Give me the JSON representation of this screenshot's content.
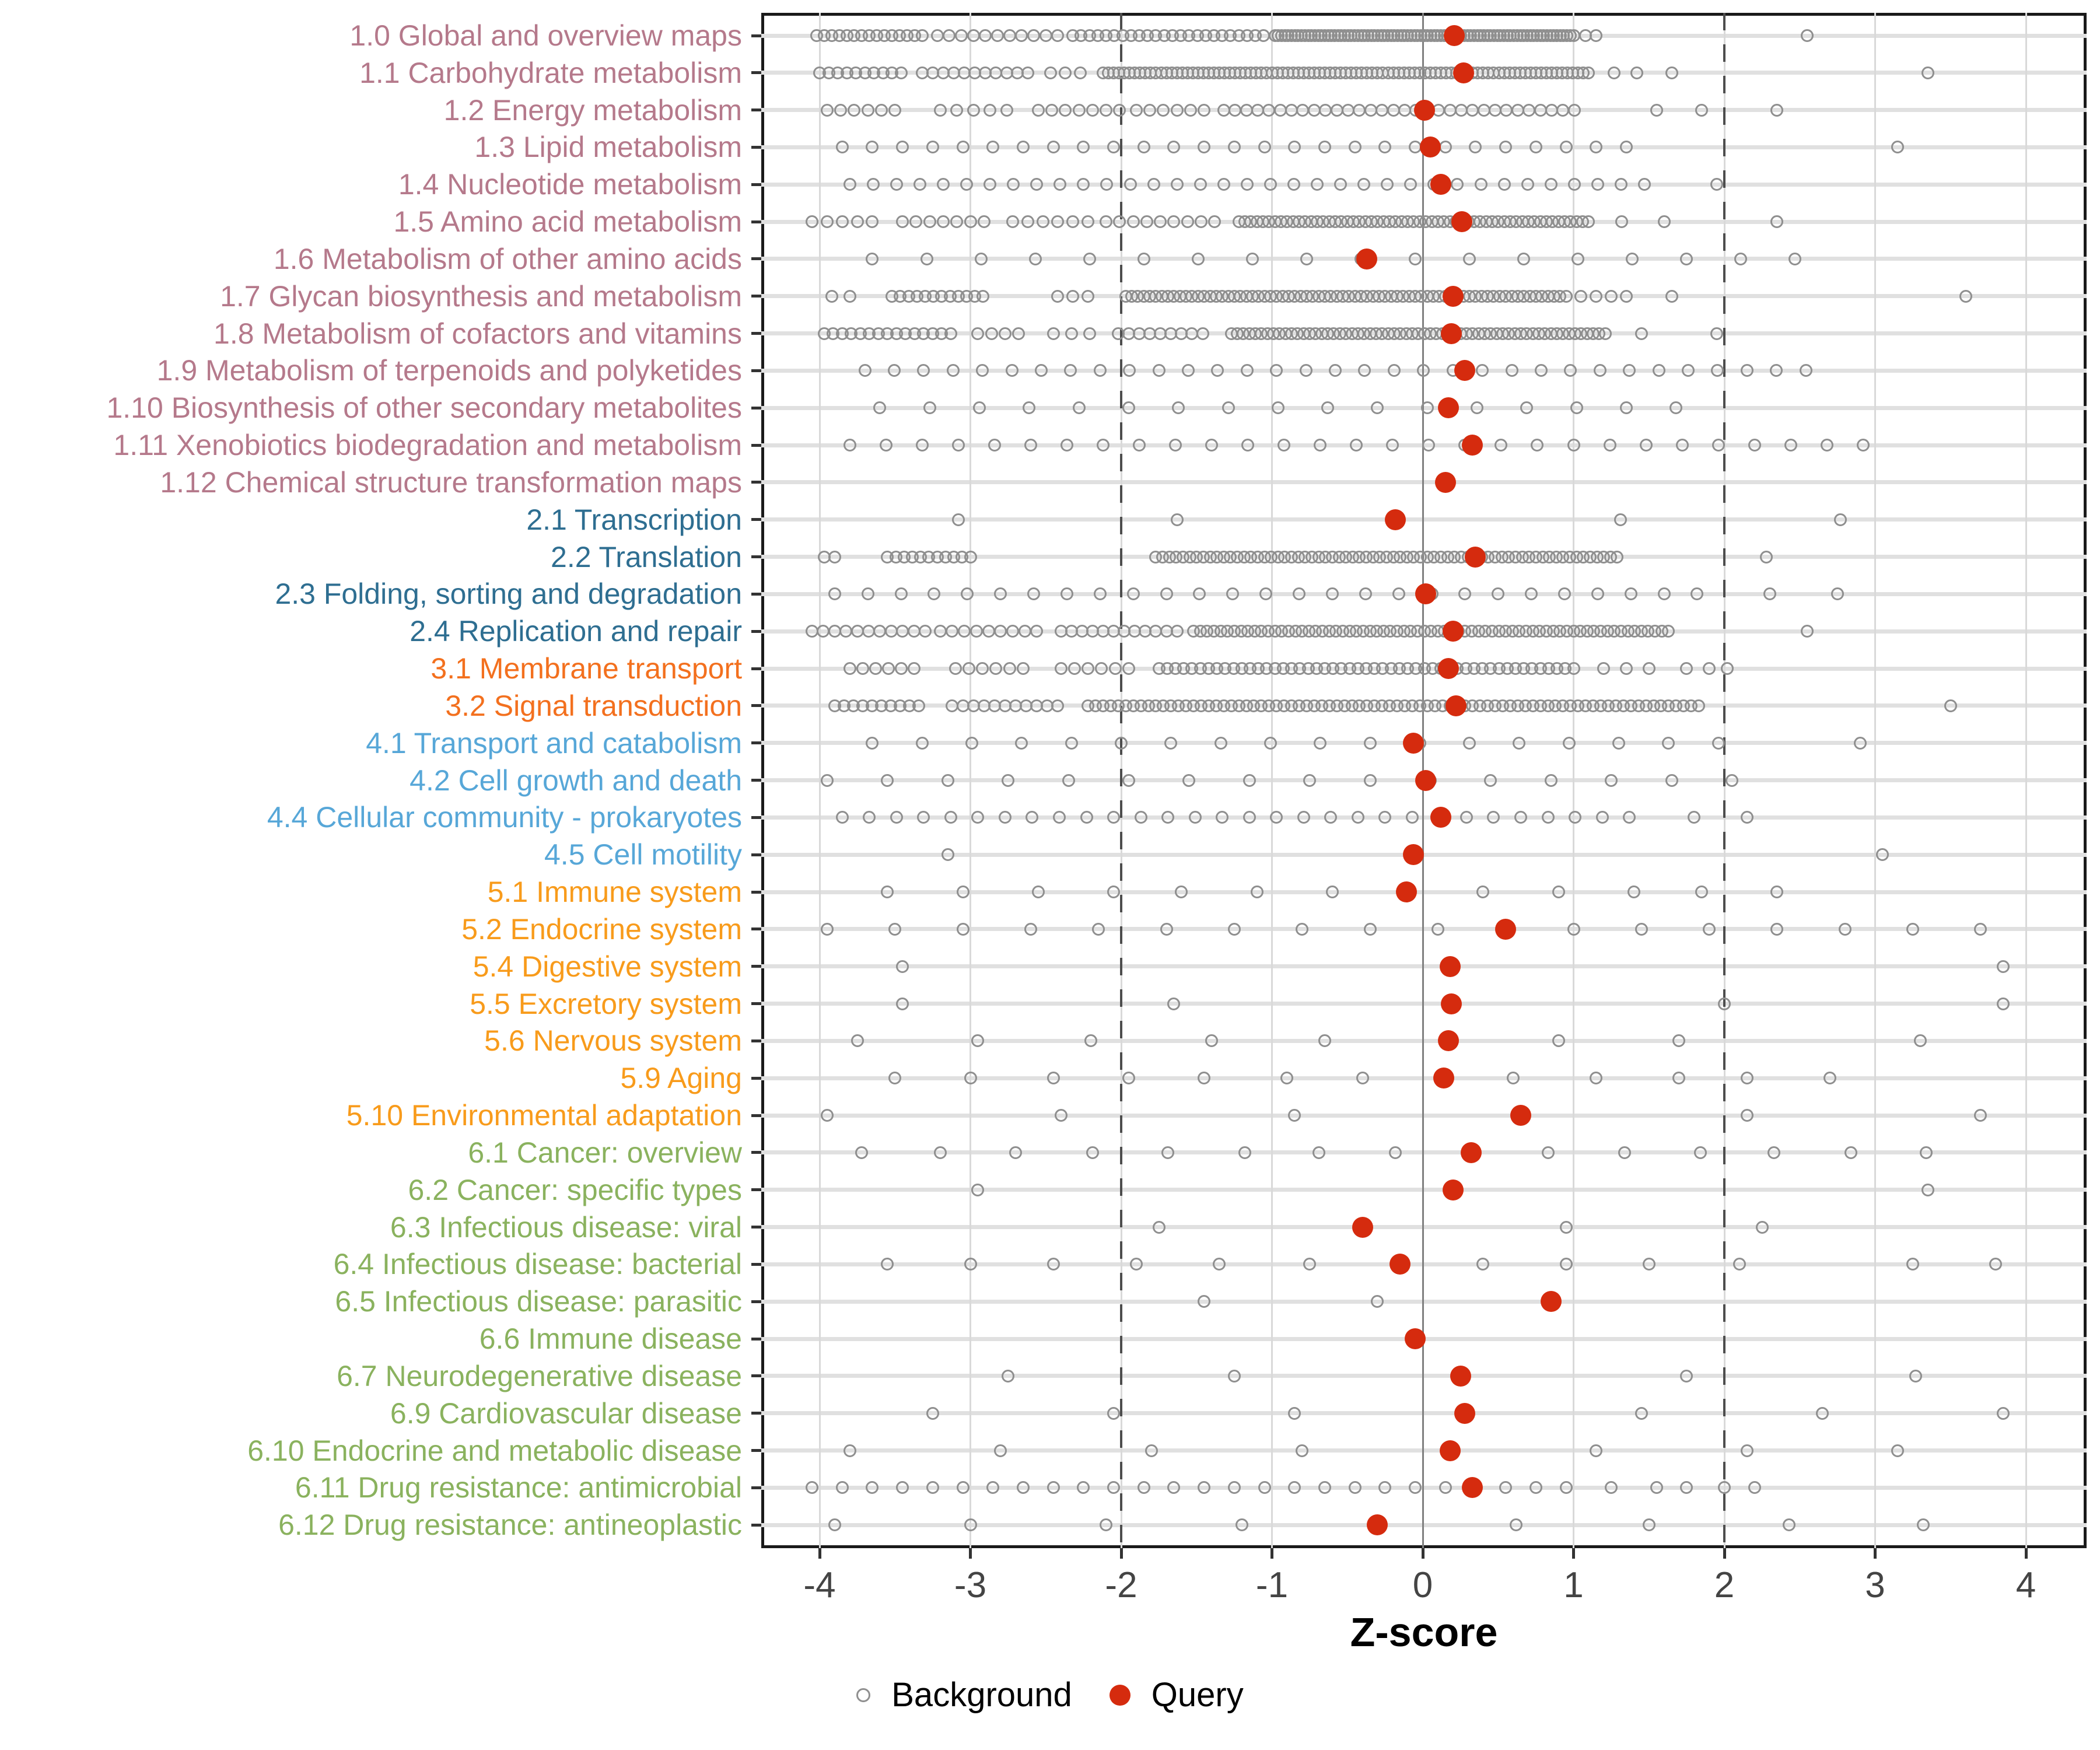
{
  "chart_data": {
    "type": "strip",
    "title": "",
    "xlabel": "Z-score",
    "x_ticks": [
      -4,
      -3,
      -2,
      -1,
      0,
      1,
      2,
      3,
      4
    ],
    "xlim": [
      -4.39,
      4.4
    ],
    "grid": "major-x and per-row horizontal lines",
    "reference_lines": {
      "solid_at": 0,
      "dashed_at": [
        -2,
        2
      ]
    },
    "legend_position": "bottom-center",
    "legend": [
      {
        "label": "Background",
        "marker": "open-circle",
        "color": "#8f8f8f"
      },
      {
        "label": "Query",
        "marker": "filled-circle",
        "color": "#d52b0e"
      }
    ],
    "colors": {
      "query_point": "#d52b0e",
      "background_point_stroke": "#8f8f8f",
      "row_gridline": "#e0e0e0",
      "vertical_gridline": "#d9d9d9",
      "zero_line": "#808080",
      "dashed_line": "#4d4d4d",
      "tick_label": "#444444",
      "panel_border": "#1a1a1a"
    },
    "group_colors": {
      "metabolism": "#b5798b",
      "genetic_information_processing": "#2e6e91",
      "environmental_information_processing": "#f3701e",
      "cellular_processes": "#57a7d8",
      "organismal_systems": "#f89b1b",
      "human_diseases": "#8ab25e"
    },
    "rows": [
      {
        "label": "1.0 Global and overview maps",
        "group": "metabolism",
        "query": 0.21,
        "bg_runs": [
          [
            -4.02,
            -3.32,
            0.05
          ],
          [
            -3.22,
            -2.42,
            0.08
          ],
          [
            -2.32,
            -1.02,
            0.055
          ],
          [
            -0.98,
            1.02,
            0.022
          ]
        ],
        "bg": [
          1.08,
          1.15,
          2.55
        ]
      },
      {
        "label": "1.1 Carbohydrate metabolism",
        "group": "metabolism",
        "query": 0.27,
        "bg_runs": [
          [
            -4.0,
            -3.42,
            0.06
          ],
          [
            -3.32,
            -2.62,
            0.07
          ],
          [
            -2.47,
            -2.27,
            0.1
          ],
          [
            -2.12,
            1.12,
            0.035
          ]
        ],
        "bg": [
          1.27,
          1.42,
          1.65,
          3.35
        ]
      },
      {
        "label": "1.2 Energy metabolism",
        "group": "metabolism",
        "query": 0.01,
        "bg_runs": [
          [
            -3.95,
            -3.5,
            0.09
          ],
          [
            -3.2,
            -2.75,
            0.11
          ],
          [
            -2.55,
            -1.98,
            0.09
          ],
          [
            -1.9,
            -1.42,
            0.09
          ],
          [
            -1.32,
            1.02,
            0.075
          ]
        ],
        "bg": [
          1.55,
          1.85,
          2.35
        ]
      },
      {
        "label": "1.3 Lipid metabolism",
        "group": "metabolism",
        "query": 0.05,
        "bg_runs": [
          [
            -3.85,
            1.35,
            0.2
          ]
        ],
        "bg": [
          3.15
        ]
      },
      {
        "label": "1.4 Nucleotide metabolism",
        "group": "metabolism",
        "query": 0.12,
        "bg_runs": [
          [
            -3.8,
            1.58,
            0.155
          ]
        ],
        "bg": [
          1.95
        ]
      },
      {
        "label": "1.5 Amino acid metabolism",
        "group": "metabolism",
        "query": 0.26,
        "bg_runs": [
          [
            -4.05,
            -3.58,
            0.1
          ],
          [
            -3.45,
            -2.9,
            0.09
          ],
          [
            -2.72,
            -2.22,
            0.1
          ],
          [
            -2.1,
            -1.32,
            0.09
          ],
          [
            -1.22,
            1.12,
            0.04
          ]
        ],
        "bg": [
          1.32,
          1.6,
          2.35
        ]
      },
      {
        "label": "1.6 Metabolism of other amino acids",
        "group": "metabolism",
        "query": -0.37,
        "bg_runs": [
          [
            -3.65,
            2.56,
            0.36
          ]
        ],
        "bg": []
      },
      {
        "label": "1.7 Glycan biosynthesis and metabolism",
        "group": "metabolism",
        "query": 0.2,
        "bg_runs": [
          [
            -3.92,
            -3.8,
            0.12
          ],
          [
            -3.52,
            -2.9,
            0.055
          ],
          [
            -2.42,
            -2.22,
            0.1
          ],
          [
            -1.97,
            0.97,
            0.04
          ],
          [
            1.05,
            1.35,
            0.1
          ]
        ],
        "bg": [
          1.65,
          3.6
        ]
      },
      {
        "label": "1.8 Metabolism of cofactors and vitamins",
        "group": "metabolism",
        "query": 0.19,
        "bg_runs": [
          [
            -3.97,
            -3.1,
            0.06
          ],
          [
            -2.95,
            -2.6,
            0.09
          ],
          [
            -2.45,
            -2.2,
            0.12
          ],
          [
            -2.02,
            -1.42,
            0.07
          ],
          [
            -1.27,
            1.22,
            0.04
          ]
        ],
        "bg": [
          1.45,
          1.95
        ]
      },
      {
        "label": "1.9 Metabolism of terpenoids and polyketides",
        "group": "metabolism",
        "query": 0.28,
        "bg_runs": [
          [
            -3.7,
            2.65,
            0.195
          ]
        ],
        "bg": []
      },
      {
        "label": "1.10 Biosynthesis of other secondary metabolites",
        "group": "metabolism",
        "query": 0.17,
        "bg_runs": [
          [
            -3.6,
            1.72,
            0.33
          ]
        ],
        "bg": []
      },
      {
        "label": "1.11 Xenobiotics biodegradation and metabolism",
        "group": "metabolism",
        "query": 0.33,
        "bg_runs": [
          [
            -3.8,
            3.0,
            0.24
          ]
        ],
        "bg": []
      },
      {
        "label": "1.12 Chemical structure transformation maps",
        "group": "metabolism",
        "query": 0.15,
        "bg_runs": [],
        "bg": []
      },
      {
        "label": "2.1 Transcription",
        "group": "genetic_information_processing",
        "query": -0.18,
        "bg_runs": [],
        "bg": [
          -3.08,
          -1.63,
          1.31,
          2.77
        ]
      },
      {
        "label": "2.2 Translation",
        "group": "genetic_information_processing",
        "query": 0.35,
        "bg_runs": [
          [
            -3.97,
            -3.9,
            0.07
          ],
          [
            -3.55,
            -2.95,
            0.055
          ],
          [
            -1.77,
            1.32,
            0.045
          ]
        ],
        "bg": [
          2.28
        ]
      },
      {
        "label": "2.3 Folding, sorting and degradation",
        "group": "genetic_information_processing",
        "query": 0.02,
        "bg_runs": [
          [
            -3.9,
            1.86,
            0.22
          ]
        ],
        "bg": [
          2.3,
          2.75
        ]
      },
      {
        "label": "2.4 Replication and repair",
        "group": "genetic_information_processing",
        "query": 0.2,
        "bg_runs": [
          [
            -4.05,
            -3.3,
            0.075
          ],
          [
            -3.2,
            -2.5,
            0.08
          ],
          [
            -2.4,
            -1.6,
            0.07
          ],
          [
            -1.52,
            1.66,
            0.045
          ]
        ],
        "bg": [
          2.55
        ]
      },
      {
        "label": "3.1 Membrane transport",
        "group": "environmental_information_processing",
        "query": 0.17,
        "bg_runs": [
          [
            -3.8,
            -3.3,
            0.085
          ],
          [
            -3.1,
            -2.6,
            0.09
          ],
          [
            -2.4,
            -1.9,
            0.09
          ],
          [
            -1.75,
            1.0,
            0.055
          ]
        ],
        "bg": [
          1.2,
          1.35,
          1.5,
          1.75,
          1.9,
          2.02
        ]
      },
      {
        "label": "3.2 Signal transduction",
        "group": "environmental_information_processing",
        "query": 0.22,
        "bg_runs": [
          [
            -3.9,
            -3.3,
            0.062
          ],
          [
            -3.12,
            -2.42,
            0.07
          ],
          [
            -2.22,
            1.86,
            0.05
          ]
        ],
        "bg": [
          3.5
        ]
      },
      {
        "label": "4.1 Transport and catabolism",
        "group": "cellular_processes",
        "query": -0.06,
        "bg_runs": [
          [
            -3.65,
            1.96,
            0.33
          ]
        ],
        "bg": [
          2.9
        ]
      },
      {
        "label": "4.2 Cell growth and death",
        "group": "cellular_processes",
        "query": 0.02,
        "bg_runs": [
          [
            -3.95,
            2.05,
            0.4
          ]
        ],
        "bg": []
      },
      {
        "label": "4.4 Cellular community - prokaryotes",
        "group": "cellular_processes",
        "query": 0.12,
        "bg_runs": [
          [
            -3.85,
            1.52,
            0.18
          ]
        ],
        "bg": [
          1.8,
          2.15
        ]
      },
      {
        "label": "4.5 Cell motility",
        "group": "cellular_processes",
        "query": -0.06,
        "bg_runs": [],
        "bg": [
          -3.15,
          3.05
        ]
      },
      {
        "label": "5.1 Immune system",
        "group": "organismal_systems",
        "query": -0.11,
        "bg_runs": [],
        "bg": [
          -3.55,
          -3.05,
          -2.55,
          -2.05,
          -1.6,
          -1.1,
          -0.6,
          0.4,
          0.9,
          1.4,
          1.85,
          2.35
        ]
      },
      {
        "label": "5.2 Endocrine system",
        "group": "organismal_systems",
        "query": 0.55,
        "bg_runs": [
          [
            -3.95,
            3.85,
            0.45
          ]
        ],
        "bg": []
      },
      {
        "label": "5.4 Digestive system",
        "group": "organismal_systems",
        "query": 0.18,
        "bg_runs": [],
        "bg": [
          -3.45,
          3.85
        ]
      },
      {
        "label": "5.5 Excretory system",
        "group": "organismal_systems",
        "query": 0.19,
        "bg_runs": [],
        "bg": [
          -3.45,
          -1.65,
          2.0,
          3.85
        ]
      },
      {
        "label": "5.6 Nervous system",
        "group": "organismal_systems",
        "query": 0.17,
        "bg_runs": [],
        "bg": [
          -3.75,
          -2.95,
          -2.2,
          -1.4,
          -0.65,
          0.9,
          1.7,
          3.3
        ]
      },
      {
        "label": "5.9 Aging",
        "group": "organismal_systems",
        "query": 0.14,
        "bg_runs": [],
        "bg": [
          -3.5,
          -3.0,
          -2.45,
          -1.95,
          -1.45,
          -0.9,
          -0.4,
          0.6,
          1.15,
          1.7,
          2.15,
          2.7
        ]
      },
      {
        "label": "5.10 Environmental adaptation",
        "group": "organismal_systems",
        "query": 0.65,
        "bg_runs": [],
        "bg": [
          -3.95,
          -2.4,
          -0.85,
          2.15,
          3.7
        ]
      },
      {
        "label": "6.1 Cancer: overview",
        "group": "human_diseases",
        "query": 0.32,
        "bg_runs": [],
        "bg": [
          -3.72,
          -3.2,
          -2.7,
          -2.19,
          -1.69,
          -1.18,
          -0.69,
          -0.18,
          0.83,
          1.34,
          1.84,
          2.33,
          2.84,
          3.34
        ]
      },
      {
        "label": "6.2 Cancer: specific types",
        "group": "human_diseases",
        "query": 0.2,
        "bg_runs": [],
        "bg": [
          -2.95,
          3.35
        ]
      },
      {
        "label": "6.3 Infectious disease: viral",
        "group": "human_diseases",
        "query": -0.4,
        "bg_runs": [],
        "bg": [
          -1.75,
          0.95,
          2.25
        ]
      },
      {
        "label": "6.4 Infectious disease: bacterial",
        "group": "human_diseases",
        "query": -0.15,
        "bg_runs": [],
        "bg": [
          -3.55,
          -3.0,
          -2.45,
          -1.9,
          -1.35,
          -0.75,
          0.4,
          0.95,
          1.5,
          2.1,
          3.25,
          3.8
        ]
      },
      {
        "label": "6.5 Infectious disease: parasitic",
        "group": "human_diseases",
        "query": 0.85,
        "bg_runs": [],
        "bg": [
          -1.45,
          -0.3
        ]
      },
      {
        "label": "6.6 Immune disease",
        "group": "human_diseases",
        "query": -0.05,
        "bg_runs": [],
        "bg": []
      },
      {
        "label": "6.7 Neurodegenerative disease",
        "group": "human_diseases",
        "query": 0.25,
        "bg_runs": [],
        "bg": [
          -2.75,
          -1.25,
          1.75,
          3.27
        ]
      },
      {
        "label": "6.9 Cardiovascular disease",
        "group": "human_diseases",
        "query": 0.28,
        "bg_runs": [],
        "bg": [
          -3.25,
          -2.05,
          -0.85,
          1.45,
          2.65,
          3.85
        ]
      },
      {
        "label": "6.10 Endocrine and metabolic disease",
        "group": "human_diseases",
        "query": 0.18,
        "bg_runs": [],
        "bg": [
          -3.8,
          -2.8,
          -1.8,
          -0.8,
          1.15,
          2.15,
          3.15
        ]
      },
      {
        "label": "6.11 Drug resistance: antimicrobial",
        "group": "human_diseases",
        "query": 0.33,
        "bg_runs": [
          [
            -4.05,
            1.02,
            0.2
          ]
        ],
        "bg": [
          1.25,
          1.55,
          1.75,
          2.0,
          2.2
        ]
      },
      {
        "label": "6.12 Drug resistance: antineoplastic",
        "group": "human_diseases",
        "query": -0.3,
        "bg_runs": [],
        "bg": [
          -3.9,
          -3.0,
          -2.1,
          -1.2,
          0.62,
          1.5,
          2.43,
          3.32
        ]
      }
    ]
  }
}
